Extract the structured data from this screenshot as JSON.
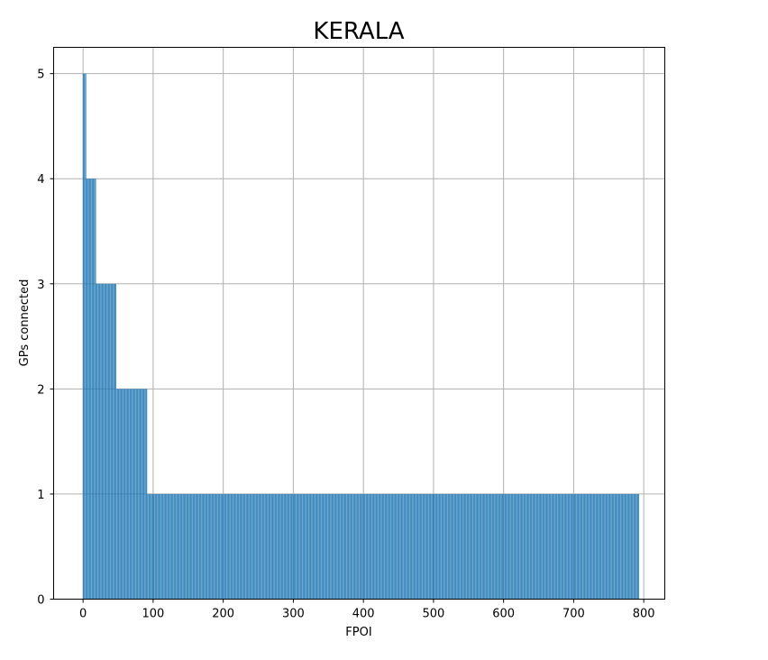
{
  "chart_data": {
    "type": "bar",
    "title": "KERALA",
    "xlabel": "FPOI",
    "ylabel": "GPs connected",
    "xlim": [
      -42,
      830
    ],
    "ylim": [
      0,
      5.25
    ],
    "x_ticks": [
      0,
      100,
      200,
      300,
      400,
      500,
      600,
      700,
      800
    ],
    "y_ticks": [
      0,
      1,
      2,
      3,
      4,
      5
    ],
    "grid": true,
    "bar_color": "#1f77b4",
    "bar_width": 0.8,
    "runs": [
      {
        "value": 5,
        "count": 5
      },
      {
        "value": 4,
        "count": 14
      },
      {
        "value": 3,
        "count": 29
      },
      {
        "value": 2,
        "count": 44
      },
      {
        "value": 1,
        "count": 702
      }
    ]
  }
}
